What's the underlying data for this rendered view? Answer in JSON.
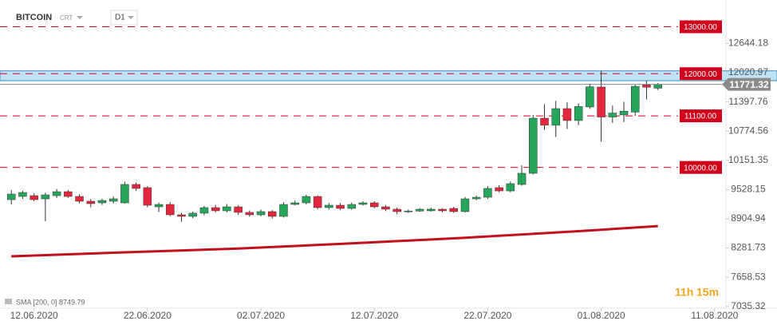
{
  "chart_data": {
    "type": "candlestick",
    "symbol": "BITCOIN",
    "symbol_tag": "CRT",
    "timeframe": "D1",
    "up_color": "#26a65b",
    "down_color": "#e5273d",
    "x": [
      "10.06.2020",
      "11.06.2020",
      "12.06.2020",
      "13.06.2020",
      "14.06.2020",
      "15.06.2020",
      "16.06.2020",
      "17.06.2020",
      "18.06.2020",
      "19.06.2020",
      "20.06.2020",
      "21.06.2020",
      "22.06.2020",
      "23.06.2020",
      "24.06.2020",
      "25.06.2020",
      "26.06.2020",
      "27.06.2020",
      "28.06.2020",
      "29.06.2020",
      "30.06.2020",
      "01.07.2020",
      "02.07.2020",
      "03.07.2020",
      "04.07.2020",
      "05.07.2020",
      "06.07.2020",
      "07.07.2020",
      "08.07.2020",
      "09.07.2020",
      "10.07.2020",
      "11.07.2020",
      "12.07.2020",
      "13.07.2020",
      "14.07.2020",
      "15.07.2020",
      "16.07.2020",
      "17.07.2020",
      "18.07.2020",
      "19.07.2020",
      "20.07.2020",
      "21.07.2020",
      "22.07.2020",
      "23.07.2020",
      "24.07.2020",
      "25.07.2020",
      "26.07.2020",
      "27.07.2020",
      "28.07.2020",
      "29.07.2020",
      "30.07.2020",
      "31.07.2020",
      "01.08.2020",
      "02.08.2020",
      "03.08.2020",
      "04.08.2020",
      "05.08.2020",
      "06.08.2020"
    ],
    "open": [
      9313,
      9381,
      9398,
      9330,
      9398,
      9483,
      9381,
      9279,
      9245,
      9279,
      9245,
      9637,
      9569,
      9160,
      9211,
      8990,
      8956,
      9024,
      9143,
      9075,
      9160,
      9041,
      8990,
      9058,
      8956,
      9211,
      9245,
      9381,
      9143,
      9194,
      9126,
      9211,
      9245,
      9160,
      9109,
      9058,
      9070,
      9075,
      9109,
      9126,
      9058,
      9330,
      9364,
      9569,
      9500,
      9637,
      9875,
      11050,
      10900,
      11255,
      11000,
      11290,
      11715,
      11075,
      11120,
      11180,
      11760,
      11690
    ],
    "high": [
      9517,
      9500,
      9450,
      9460,
      9540,
      9520,
      9430,
      9330,
      9330,
      9380,
      9700,
      9680,
      9600,
      9250,
      9260,
      9030,
      9060,
      9180,
      9200,
      9220,
      9190,
      9080,
      9100,
      9090,
      9260,
      9290,
      9420,
      9400,
      9240,
      9240,
      9250,
      9280,
      9280,
      9200,
      9150,
      9100,
      9130,
      9140,
      9130,
      9160,
      9370,
      9400,
      9600,
      9620,
      9700,
      10050,
      11120,
      11350,
      11420,
      11390,
      11370,
      11780,
      12060,
      11320,
      11400,
      11770,
      11850,
      11800
    ],
    "low": [
      9211,
      9330,
      9280,
      8853,
      9350,
      9350,
      9230,
      9150,
      9200,
      9230,
      9230,
      9500,
      9150,
      9050,
      8960,
      8840,
      8920,
      8980,
      9040,
      9040,
      8990,
      8950,
      8960,
      8910,
      8930,
      9190,
      9210,
      9110,
      9100,
      9090,
      9100,
      9190,
      9130,
      9070,
      9000,
      9030,
      9050,
      9060,
      9040,
      9030,
      9040,
      9300,
      9330,
      9470,
      9470,
      9610,
      9850,
      10800,
      10650,
      10820,
      10900,
      11250,
      10550,
      10950,
      10970,
      11100,
      11450,
      11650
    ],
    "close": [
      9432,
      9466,
      9313,
      9415,
      9483,
      9381,
      9279,
      9228,
      9296,
      9330,
      9637,
      9552,
      9194,
      9211,
      8990,
      8956,
      9024,
      9143,
      9075,
      9160,
      9041,
      8990,
      9058,
      8956,
      9211,
      9245,
      9381,
      9143,
      9194,
      9126,
      9211,
      9245,
      9160,
      9109,
      9058,
      9070,
      9109,
      9109,
      9075,
      9058,
      9330,
      9364,
      9552,
      9500,
      9654,
      9875,
      11050,
      10900,
      11255,
      11000,
      11300,
      11720,
      11075,
      11160,
      11200,
      11731,
      11710,
      11771.32
    ],
    "sma": {
      "label": "SMA [200, 0] 8749.79",
      "color": "#c0121c",
      "x": [
        "10.06.2020",
        "20.06.2020",
        "30.06.2020",
        "10.07.2020",
        "20.07.2020",
        "30.07.2020",
        "06.08.2020"
      ],
      "values": [
        8104,
        8190,
        8270,
        8380,
        8500,
        8640,
        8749.79
      ]
    },
    "levels": [
      {
        "value": 13000,
        "label": "13000.00"
      },
      {
        "value": 12000,
        "label": "12000.00"
      },
      {
        "value": 11100,
        "label": "11100.00"
      },
      {
        "value": 10000,
        "label": "10000.00"
      }
    ],
    "level_color": "#d0021b",
    "zone": [
      11850,
      12060
    ],
    "zone_color": "#a9d8f0",
    "last_price": 11771.32,
    "countdown": {
      "hours": "11h",
      "minutes": "15m"
    },
    "xlim": [
      "09.06.2020",
      "12.08.2020"
    ],
    "xticks": [
      "12.06.2020",
      "22.06.2020",
      "02.07.2020",
      "12.07.2020",
      "22.07.2020",
      "01.08.2020",
      "11.08.2020"
    ],
    "ylim": [
      6997,
      13571
    ],
    "yticks": [
      12644.18,
      12020.97,
      11397.76,
      10774.56,
      10151.35,
      9528.15,
      8904.94,
      8281.73,
      7658.53,
      7035.32
    ]
  }
}
